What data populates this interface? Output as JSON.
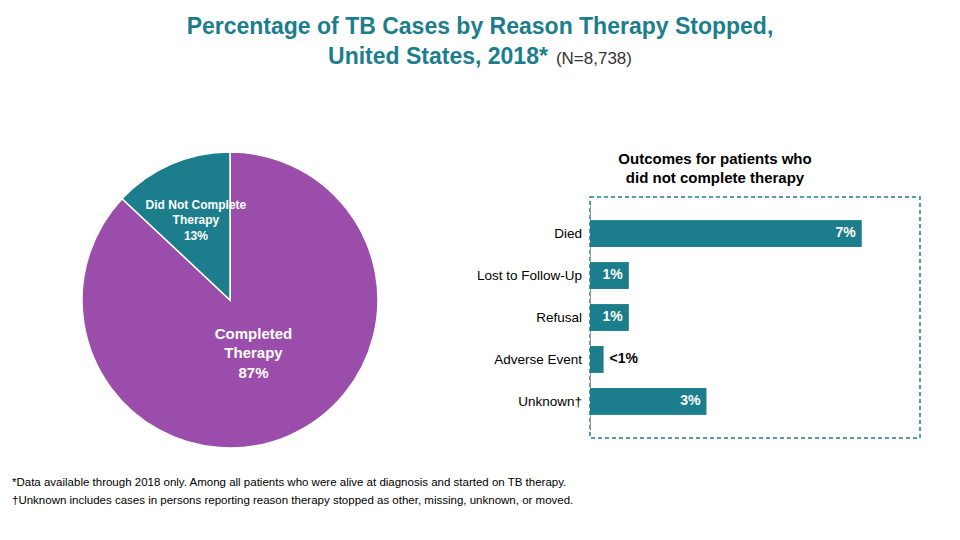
{
  "chart_data": [
    {
      "type": "pie",
      "title": "Percentage of TB Cases by Reason Therapy Stopped,\nUnited States, 2018*",
      "subtitle": "(N=8,738)",
      "categories": [
        "Completed\nTherapy",
        "Did Not Complete\nTherapy"
      ],
      "values": [
        87,
        13
      ],
      "value_labels": [
        "87%",
        "13%"
      ],
      "data_labels": true,
      "colors": [
        "#9b4dab",
        "#1c7d8c"
      ],
      "title_color": "#1c7d8c",
      "annotations": [
        "*Data available through 2018 only. Among all patients who were alive at diagnosis and started on TB therapy.",
        "†Unknown includes cases in persons reporting reason therapy stopped as other, missing, unknown, or moved."
      ]
    },
    {
      "type": "bar",
      "orientation": "horizontal",
      "title": "Outcomes for patients who\ndid not complete therapy",
      "categories": [
        "Died",
        "Lost to Follow-Up",
        "Refusal",
        "Adverse Event",
        "Unknown†"
      ],
      "values": [
        7,
        1,
        1,
        0.35,
        3
      ],
      "value_labels": [
        "7%",
        "1%",
        "1%",
        "<1%",
        "3%"
      ],
      "data_labels": true,
      "color": "#1c7d8c",
      "xlim": [
        0,
        8.5
      ],
      "tick_labels": false
    }
  ]
}
